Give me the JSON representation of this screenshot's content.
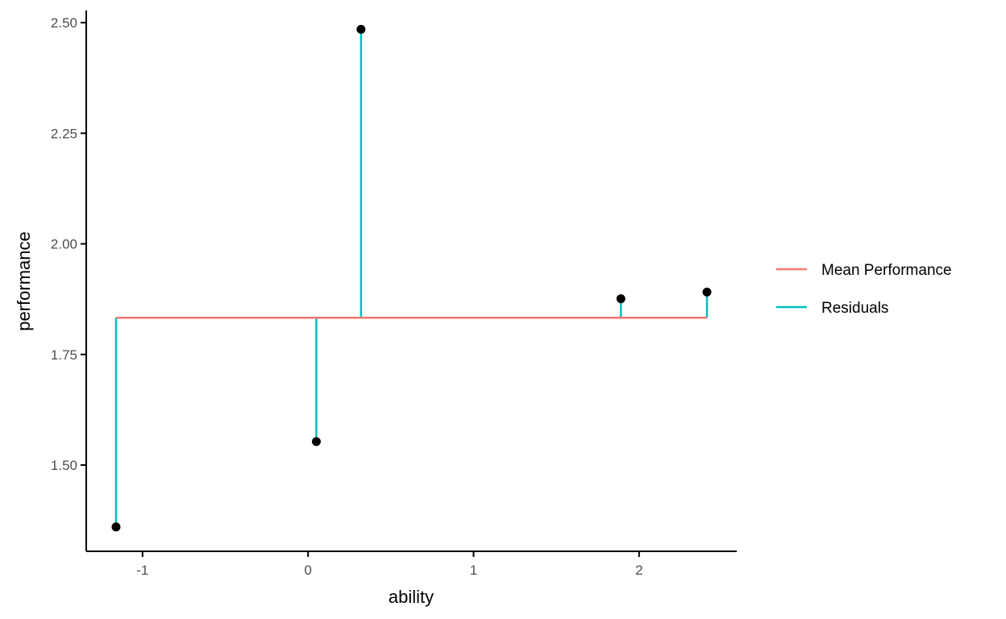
{
  "chart_data": {
    "type": "scatter",
    "title": "",
    "xlabel": "ability",
    "ylabel": "performance",
    "xlim": [
      -1.34,
      2.59
    ],
    "ylim": [
      1.305,
      2.5275
    ],
    "xticks": [
      -1,
      0,
      1,
      2
    ],
    "xtick_labels": [
      "-1",
      "0",
      "1",
      "2"
    ],
    "yticks": [
      1.5,
      1.75,
      2.0,
      2.25,
      2.5
    ],
    "ytick_labels": [
      "1.50",
      "1.75",
      "2.00",
      "2.25",
      "2.50"
    ],
    "grid": false,
    "legend_position": "right",
    "points": [
      {
        "x": -1.16,
        "y": 1.36
      },
      {
        "x": 0.05,
        "y": 1.553
      },
      {
        "x": 0.32,
        "y": 2.485
      },
      {
        "x": 1.89,
        "y": 1.876
      },
      {
        "x": 2.41,
        "y": 1.891
      }
    ],
    "mean_performance": 1.833,
    "series": [
      {
        "name": "Mean Performance",
        "color": "#F8766D"
      },
      {
        "name": "Residuals",
        "color": "#00BFC4"
      }
    ],
    "point_color": "#000000"
  }
}
